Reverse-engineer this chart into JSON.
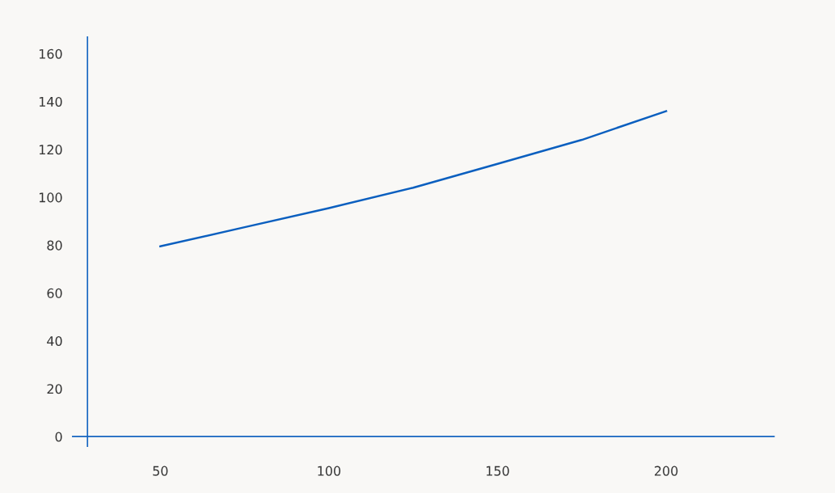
{
  "chart_data": {
    "type": "line",
    "x": [
      50,
      75,
      100,
      125,
      150,
      175,
      200
    ],
    "series": [
      {
        "color": "#0b5fbf",
        "values": [
          79.5,
          87.5,
          95.5,
          104,
          114,
          124,
          136
        ]
      }
    ],
    "xlim": [
      24,
      232
    ],
    "ylim": [
      -4,
      167
    ],
    "xticks": [
      50,
      100,
      150,
      200
    ],
    "yticks": [
      0,
      20,
      40,
      60,
      80,
      100,
      120,
      140,
      160
    ],
    "grid": false,
    "legend": false,
    "marker": "none",
    "line_style": "solid"
  }
}
